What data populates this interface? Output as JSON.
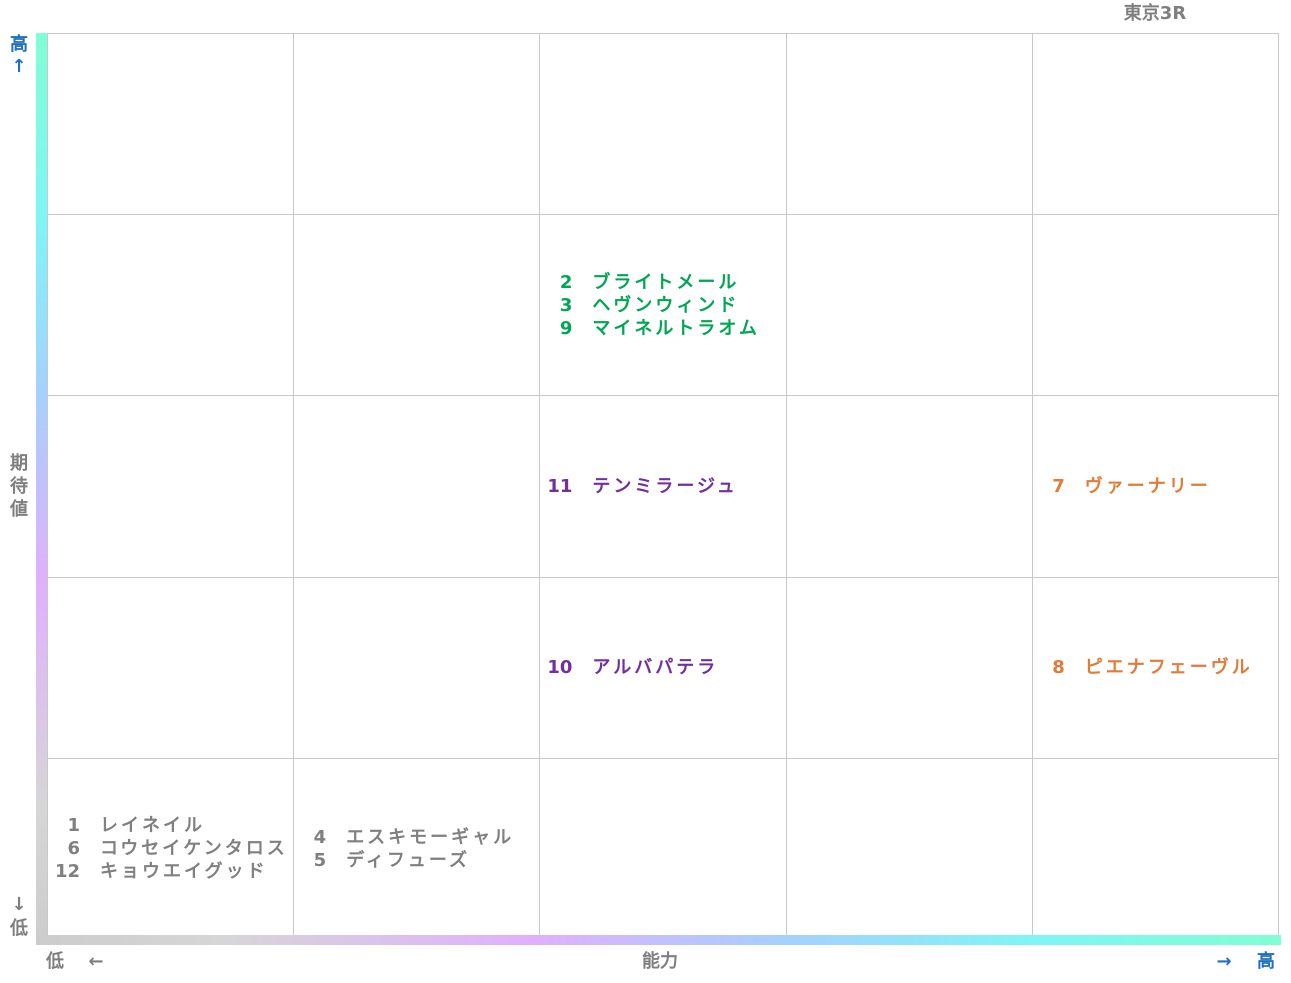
{
  "title": "東京3R",
  "y_axis": {
    "label": [
      "期",
      "待",
      "値"
    ],
    "high": {
      "label": "高",
      "arrow": "↑"
    },
    "low": {
      "label": "低",
      "arrow": "↓"
    }
  },
  "x_axis": {
    "label": "能力",
    "low": {
      "label": "低",
      "arrow": "←"
    },
    "high": {
      "label": "高",
      "arrow": "→"
    }
  },
  "grid": {
    "rows": [
      [
        null,
        null,
        null,
        null,
        null
      ],
      [
        null,
        null,
        {
          "color": "#00a651",
          "entries": [
            {
              "number": "2",
              "name": "ブライトメール"
            },
            {
              "number": "3",
              "name": "ヘヴンウィンド"
            },
            {
              "number": "9",
              "name": "マイネルトラオム"
            }
          ]
        },
        null,
        null
      ],
      [
        null,
        null,
        {
          "color": "#7030a0",
          "entries": [
            {
              "number": "11",
              "name": "テンミラージュ"
            }
          ]
        },
        null,
        {
          "color": "#e07b39",
          "entries": [
            {
              "number": "7",
              "name": "ヴァーナリー"
            }
          ]
        }
      ],
      [
        null,
        null,
        {
          "color": "#7030a0",
          "entries": [
            {
              "number": "10",
              "name": "アルバパテラ"
            }
          ]
        },
        null,
        {
          "color": "#e07b39",
          "entries": [
            {
              "number": "8",
              "name": "ピエナフェーヴル"
            }
          ]
        }
      ],
      [
        {
          "color": "#808080",
          "entries": [
            {
              "number": "1",
              "name": "レイネイル"
            },
            {
              "number": "6",
              "name": "コウセイケンタロス"
            },
            {
              "number": "12",
              "name": "キョウエイグッド"
            }
          ]
        },
        {
          "color": "#808080",
          "entries": [
            {
              "number": "4",
              "name": "エスキモーギャル"
            },
            {
              "number": "5",
              "name": "ディフューズ"
            }
          ]
        },
        null,
        null,
        null
      ]
    ]
  }
}
